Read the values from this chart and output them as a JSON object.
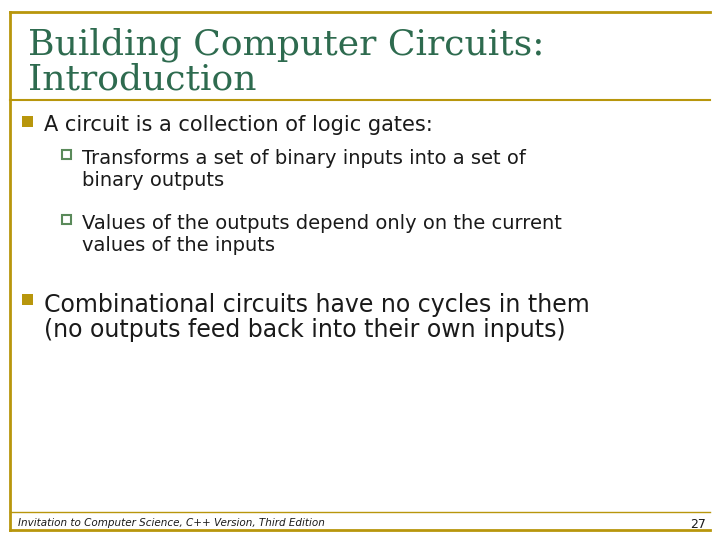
{
  "title_line1": "Building Computer Circuits:",
  "title_line2": "Introduction",
  "title_color": "#2E6B4F",
  "background_color": "#FFFFFF",
  "border_color": "#B8960C",
  "bullet_color": "#B8960C",
  "sub_bullet_color": "#5A8A5A",
  "text_color": "#1A1A1A",
  "footer_text": "Invitation to Computer Science, C++ Version, Third Edition",
  "page_number": "27",
  "bullet1": "A circuit is a collection of logic gates:",
  "sub_bullet1_line1": "Transforms a set of binary inputs into a set of",
  "sub_bullet1_line2": "binary outputs",
  "sub_bullet2_line1": "Values of the outputs depend only on the current",
  "sub_bullet2_line2": "values of the inputs",
  "bullet2_line1": "Combinational circuits have no cycles in them",
  "bullet2_line2": "(no outputs feed back into their own inputs)"
}
